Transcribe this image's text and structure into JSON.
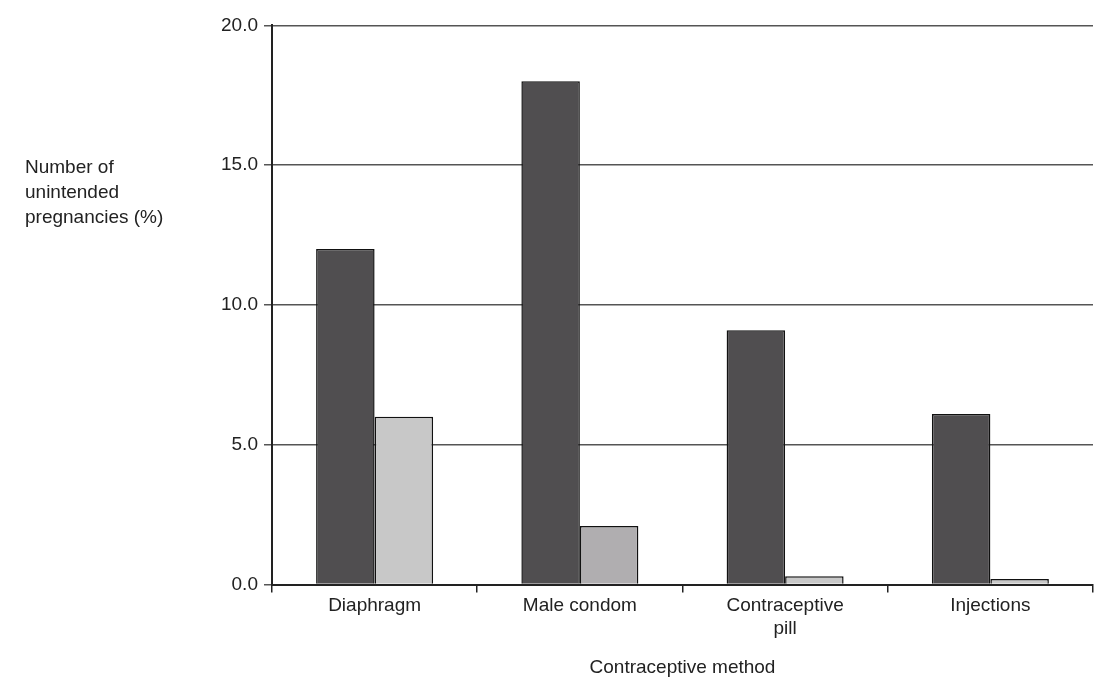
{
  "chart_data": {
    "type": "bar",
    "xlabel": "Contraceptive method",
    "ylabel": "Number of unintended pregnancies (%)",
    "categories": [
      "Diaphragm",
      "Male condom",
      "Contraceptive pill",
      "Injections"
    ],
    "series": [
      {
        "color": "#504e50",
        "values": [
          12.0,
          18.0,
          9.1,
          6.1
        ]
      },
      {
        "colors": [
          "#c8c8c8",
          "#b0aeb0",
          "#c8c8c8",
          "#c8c8c8"
        ],
        "values": [
          6.0,
          2.1,
          0.3,
          0.2
        ]
      }
    ],
    "ylim": [
      0,
      20
    ],
    "yticks": [
      {
        "value": 0,
        "label": "0.0"
      },
      {
        "value": 5,
        "label": "5.0"
      },
      {
        "value": 10,
        "label": "10.0"
      },
      {
        "value": 15,
        "label": "15.0"
      },
      {
        "value": 20,
        "label": "20.0"
      }
    ],
    "grid": "y",
    "legend": false
  }
}
